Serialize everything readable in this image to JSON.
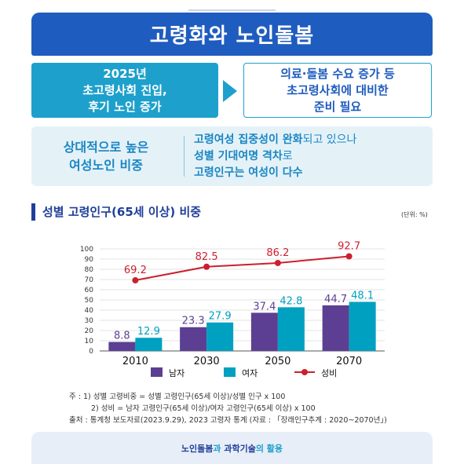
{
  "header": {
    "title": "고령화와 노인돌봄"
  },
  "facts": {
    "left_lines": [
      "2025년",
      "초고령사회 진입,",
      "후기 노인 증가"
    ],
    "right_lines": [
      "의료·돌봄 수요 증가 등",
      "초고령사회에 대비한",
      "준비 필요"
    ]
  },
  "ratio": {
    "label_lines": [
      "상대적으로 높은",
      "여성노인 비중"
    ],
    "line1_bold": "고령여성 집중성이 완화",
    "line1_rest": "되고 있으나",
    "line2_bold": "성별 기대여명 격차",
    "line2_rest": "로",
    "line3_bold": "고령인구는 여성이 다수"
  },
  "section": {
    "title": "성별 고령인구(65세 이상) 비중",
    "unit": "(단위: %)"
  },
  "colors": {
    "men": "#5c3f93",
    "women": "#00a0c1",
    "ratio": "#cc1f2e",
    "brand": "#1f5cbf"
  },
  "chart_data": {
    "type": "bar",
    "categories": [
      "2010",
      "2030",
      "2050",
      "2070"
    ],
    "series": [
      {
        "name": "남자",
        "type": "bar",
        "values": [
          8.8,
          23.3,
          37.4,
          44.7
        ]
      },
      {
        "name": "여자",
        "type": "bar",
        "values": [
          12.9,
          27.9,
          42.8,
          48.1
        ]
      },
      {
        "name": "성비",
        "type": "line",
        "values": [
          69.2,
          82.5,
          86.2,
          92.7
        ]
      }
    ],
    "ylim": [
      0,
      100
    ],
    "yticks": [
      0,
      10,
      20,
      30,
      40,
      50,
      60,
      70,
      80,
      90,
      100
    ],
    "grid": true,
    "legend": "bottom"
  },
  "notes": {
    "line1": "주 : 1) 성별 고령비중 = 성별 고령인구(65세 이상)/성별 인구 x 100",
    "line2": "2) 성비 = 남자 고령인구(65세 이상)/여자 고령인구(65세 이상) x 100",
    "line3": "출처 : 통계청 보도자료(2023.9.29), 2023 고령자 통계 (자료 : 「장래인구추계 : 2020~2070년」)"
  },
  "footer": {
    "part1": "노인돌봄",
    "part2": "과",
    "part3": "과학기술",
    "part4": "의 활용"
  }
}
